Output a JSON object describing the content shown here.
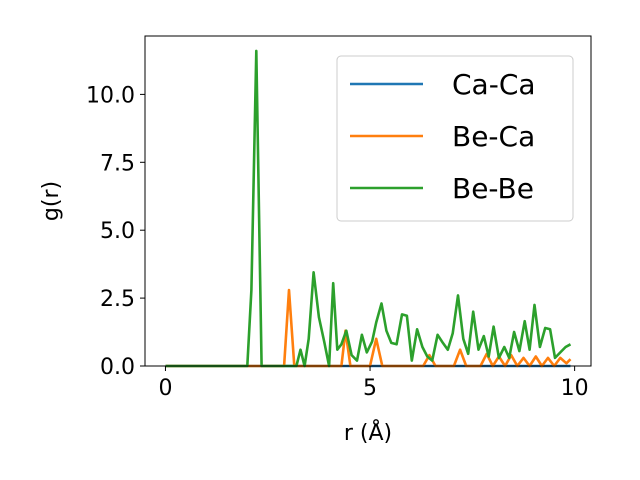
{
  "chart_data": {
    "type": "line",
    "xlabel": "r (Å)",
    "ylabel": "g(r)",
    "xlim": [
      -0.5,
      10.4
    ],
    "ylim": [
      0,
      12.15
    ],
    "xticks": [
      0,
      5,
      10
    ],
    "xtick_labels": [
      "0",
      "5",
      "10"
    ],
    "yticks": [
      0,
      2.5,
      5.0,
      7.5,
      10.0
    ],
    "ytick_labels": [
      "0.0",
      "2.5",
      "5.0",
      "7.5",
      "10.0"
    ],
    "grid": false,
    "legend_position": "top-right",
    "series": [
      {
        "name": "Ca-Ca",
        "color": "#1f77b4",
        "x": [
          0,
          1,
          2,
          3,
          4,
          5,
          6,
          7,
          8,
          9,
          9.9
        ],
        "y": [
          0,
          0,
          0,
          0,
          0,
          0,
          0,
          0,
          0,
          0,
          0
        ]
      },
      {
        "name": "Be-Ca",
        "color": "#ff7f0e",
        "x": [
          0,
          1,
          2,
          2.9,
          3.02,
          3.15,
          3.3,
          4.3,
          4.4,
          4.52,
          4.65,
          5.0,
          5.15,
          5.3,
          5.45,
          6.3,
          6.45,
          6.6,
          6.75,
          7.05,
          7.2,
          7.35,
          7.7,
          7.85,
          8.0,
          8.15,
          8.3,
          8.45,
          8.6,
          8.75,
          8.9,
          9.05,
          9.2,
          9.35,
          9.5,
          9.65,
          9.8,
          9.9
        ],
        "y": [
          0,
          0,
          0,
          0,
          2.8,
          0,
          0,
          0,
          1.3,
          0,
          0,
          0,
          1.0,
          0,
          0,
          0,
          0.4,
          0,
          0,
          0,
          0.6,
          0,
          0,
          0.45,
          0,
          0.35,
          0,
          0.4,
          0,
          0.3,
          0,
          0.35,
          0,
          0.3,
          0,
          0.3,
          0.1,
          0.25
        ]
      },
      {
        "name": "Be-Be",
        "color": "#2ca02c",
        "x": [
          0,
          1,
          2.0,
          2.1,
          2.22,
          2.35,
          2.5,
          3.2,
          3.3,
          3.4,
          3.5,
          3.62,
          3.75,
          3.88,
          4.0,
          4.1,
          4.2,
          4.3,
          4.42,
          4.55,
          4.68,
          4.8,
          4.92,
          5.05,
          5.15,
          5.28,
          5.4,
          5.52,
          5.65,
          5.78,
          5.9,
          6.02,
          6.15,
          6.28,
          6.4,
          6.52,
          6.65,
          6.78,
          6.9,
          7.02,
          7.15,
          7.28,
          7.4,
          7.52,
          7.65,
          7.78,
          7.9,
          8.02,
          8.15,
          8.28,
          8.4,
          8.52,
          8.65,
          8.78,
          8.9,
          9.02,
          9.15,
          9.28,
          9.4,
          9.52,
          9.65,
          9.78,
          9.9
        ],
        "y": [
          0,
          0,
          0,
          2.8,
          11.6,
          0,
          0,
          0,
          0.6,
          0,
          1.0,
          3.45,
          1.8,
          0.9,
          0,
          3.05,
          0.6,
          0.8,
          1.3,
          0.4,
          0.2,
          1.15,
          0.5,
          0.9,
          1.6,
          2.3,
          1.3,
          0.85,
          0.8,
          1.9,
          1.85,
          0.2,
          1.35,
          0.7,
          0.35,
          0.2,
          1.15,
          0.85,
          0.6,
          1.2,
          2.6,
          1.0,
          0.45,
          2.0,
          0.6,
          1.1,
          0.35,
          1.45,
          0.3,
          0.7,
          0.3,
          1.25,
          0.55,
          1.65,
          0.6,
          2.25,
          0.7,
          1.4,
          1.35,
          0.3,
          0.5,
          0.7,
          0.8
        ]
      }
    ]
  }
}
